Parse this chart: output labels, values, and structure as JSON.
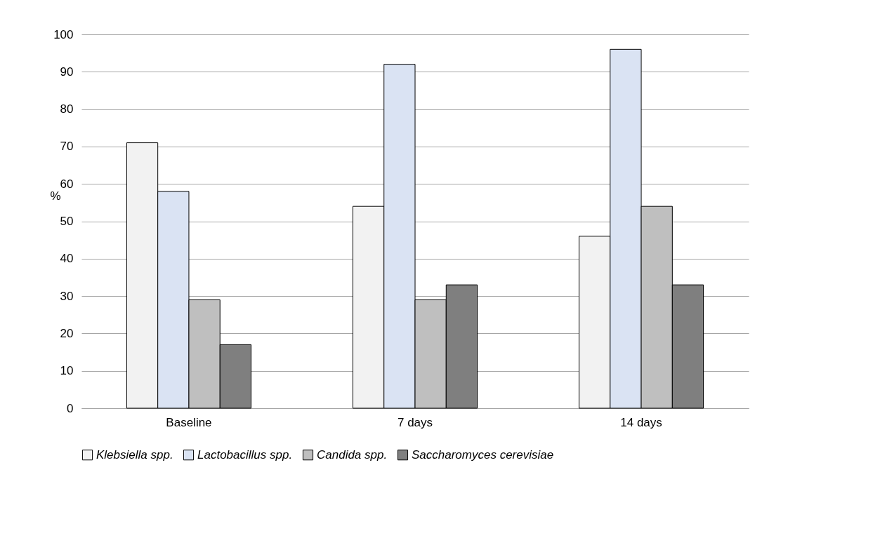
{
  "chart_data": {
    "type": "bar",
    "ylabel": "%",
    "categories": [
      "Baseline",
      "7 days",
      "14 days"
    ],
    "series": [
      {
        "name": "Klebsiella spp.",
        "color": "#f2f2f2",
        "values": [
          71,
          54,
          46
        ]
      },
      {
        "name": "Lactobacillus spp.",
        "color": "#dae3f3",
        "values": [
          58,
          92,
          96
        ]
      },
      {
        "name": "Candida spp.",
        "color": "#bfbfbf",
        "values": [
          29,
          29,
          54
        ]
      },
      {
        "name": "Saccharomyces cerevisiae",
        "color": "#7f7f7f",
        "values": [
          17,
          33,
          33
        ]
      }
    ],
    "ylim": [
      0,
      100
    ],
    "yticks": [
      0,
      10,
      20,
      30,
      40,
      50,
      60,
      70,
      80,
      90,
      100
    ],
    "grid": "y",
    "legend": "bottom"
  }
}
